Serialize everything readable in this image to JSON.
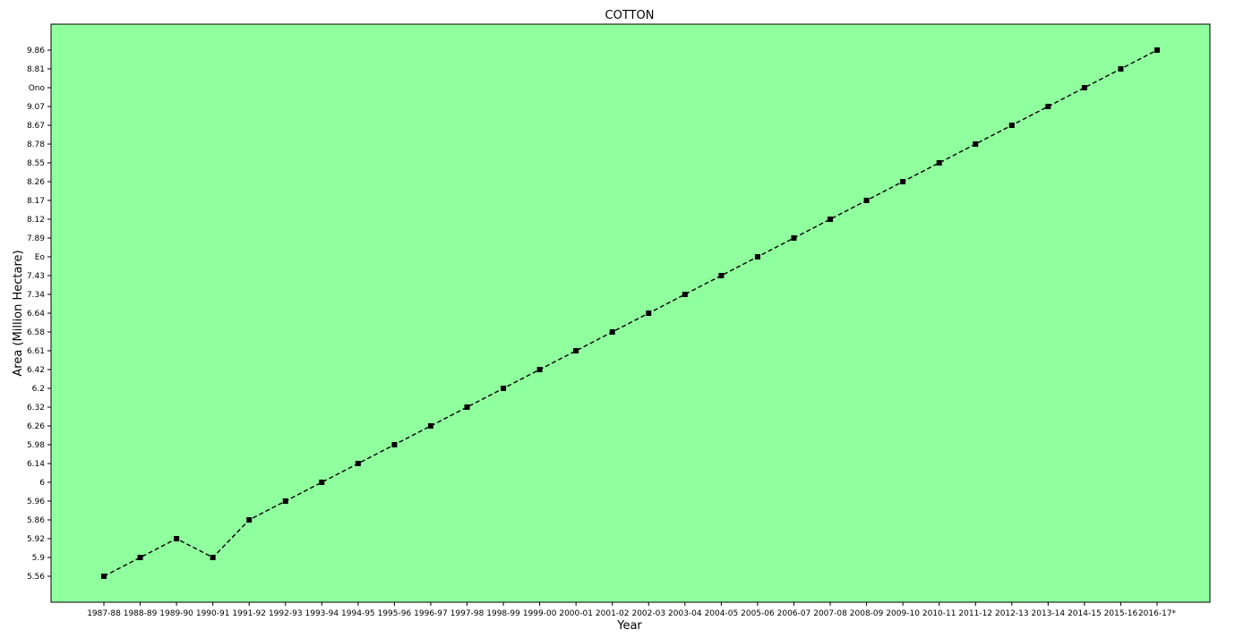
{
  "chart_data": {
    "type": "line",
    "title": "COTTON",
    "xlabel": "Year",
    "ylabel": "Area  (Million Hectare)",
    "categories": [
      "1987-88",
      "1988-89",
      "1989-90",
      "1990-91",
      "1991-92",
      "1992-93",
      "1993-94",
      "1994-95",
      "1995-96",
      "1996-97",
      "1997-98",
      "1998-99",
      "1999-00",
      "2000-01",
      "2001-02",
      "2002-03",
      "2003-04",
      "2004-05",
      "2005-06",
      "2006-07",
      "2007-08",
      "2008-09",
      "2009-10",
      "2010-11",
      "2011-12",
      "2012-13",
      "2013-14",
      "2014-15",
      "2015-16",
      "2016-17*"
    ],
    "y_categories": [
      "5.56",
      "5.9",
      "5.92",
      "5.86",
      "5.96",
      "6",
      "6.14",
      "5.98",
      "6.26",
      "6.32",
      "6.2",
      "6.42",
      "6.61",
      "6.58",
      "6.64",
      "7.34",
      "7.43",
      "Eo",
      "7.89",
      "8.12",
      "8.17",
      "8.26",
      "8.55",
      "8.78",
      "8.67",
      "9.07",
      "Ono",
      "8.81",
      "9.86"
    ],
    "series": [
      {
        "values": [
          "5.56",
          "5.9",
          "5.92",
          "5.9",
          "5.86",
          "5.96",
          "6",
          "6.14",
          "5.98",
          "6.26",
          "6.32",
          "6.2",
          "6.42",
          "6.61",
          "6.58",
          "6.64",
          "7.34",
          "7.43",
          "Eo",
          "7.89",
          "8.12",
          "8.17",
          "8.26",
          "8.55",
          "8.78",
          "8.67",
          "9.07",
          "Ono",
          "8.81",
          "9.86"
        ],
        "color": "#000000",
        "marker": "square",
        "linestyle": "dashed"
      }
    ],
    "grid": false,
    "background_color": "#90ff9e"
  }
}
